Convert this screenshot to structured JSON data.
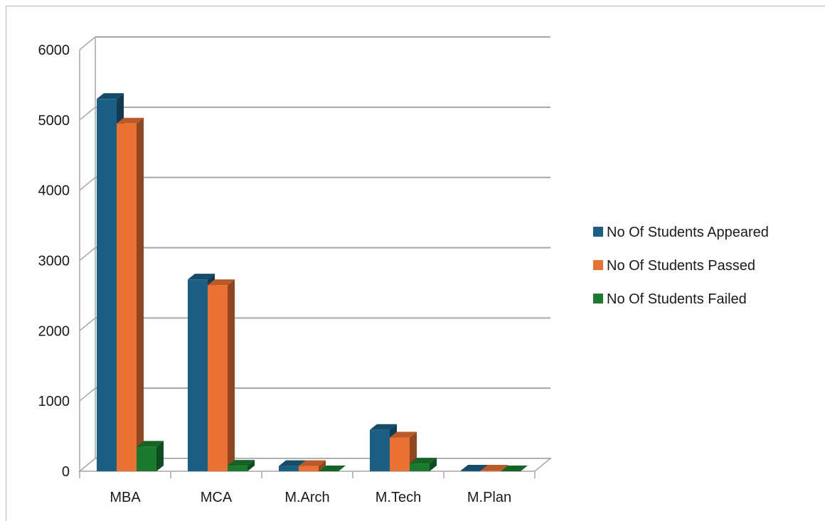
{
  "chart_data": {
    "type": "bar",
    "style": "3d-clustered-column",
    "categories": [
      "MBA",
      "MCA",
      "M.Arch",
      "M.Tech",
      "M.Plan"
    ],
    "series": [
      {
        "name": "No Of Students Appeared",
        "color": "#1b5f84",
        "values": [
          5300,
          2730,
          75,
          590,
          10
        ]
      },
      {
        "name": "No Of Students Passed",
        "color": "#e97132",
        "values": [
          4950,
          2650,
          75,
          480,
          10
        ]
      },
      {
        "name": "No Of Students Failed",
        "color": "#1a7a2e",
        "values": [
          350,
          80,
          0,
          110,
          0
        ]
      }
    ],
    "ylim": [
      0,
      6000
    ],
    "yticks": [
      "0",
      "1000",
      "2000",
      "3000",
      "4000",
      "5000",
      "6000"
    ],
    "grid": true,
    "legend": "right"
  }
}
